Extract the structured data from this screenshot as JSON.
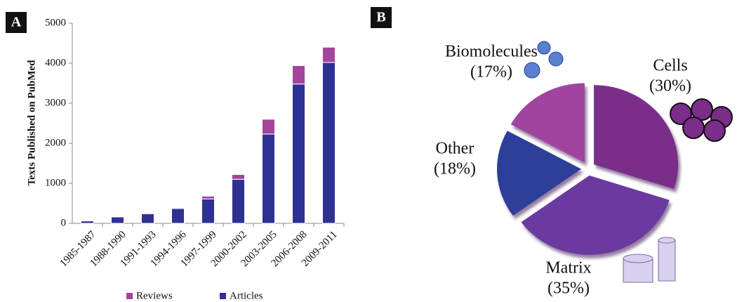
{
  "chart_data": [
    {
      "type": "bar",
      "panel_label": "A",
      "stacked": true,
      "ylabel": "Texts Published on PubMed",
      "categories": [
        "1985-1987",
        "1988-1990",
        "1991-1993",
        "1994-1996",
        "1997-1999",
        "2000-2002",
        "2003-2005",
        "2006-2008",
        "2009-2011"
      ],
      "series": [
        {
          "name": "Articles",
          "color": "#2e3192",
          "values": [
            60,
            160,
            240,
            370,
            610,
            1100,
            2230,
            3480,
            4020
          ]
        },
        {
          "name": "Reviews",
          "color": "#a4449c",
          "values": [
            10,
            15,
            20,
            20,
            70,
            120,
            370,
            460,
            380
          ]
        }
      ],
      "ylim": [
        0,
        5000
      ],
      "yticks": [
        0,
        1000,
        2000,
        3000,
        4000,
        5000
      ],
      "legend": "bottom"
    },
    {
      "type": "pie",
      "panel_label": "B",
      "categories": [
        "Cells",
        "Matrix",
        "Other",
        "Biomolecules"
      ],
      "values": [
        30,
        35,
        18,
        17
      ],
      "value_labels": [
        "(30%)",
        "(35%)",
        "(18%)",
        "(17%)"
      ],
      "colors": [
        "#7b2d8a",
        "#6a3aa0",
        "#2e3f9a",
        "#a0449f"
      ]
    }
  ]
}
